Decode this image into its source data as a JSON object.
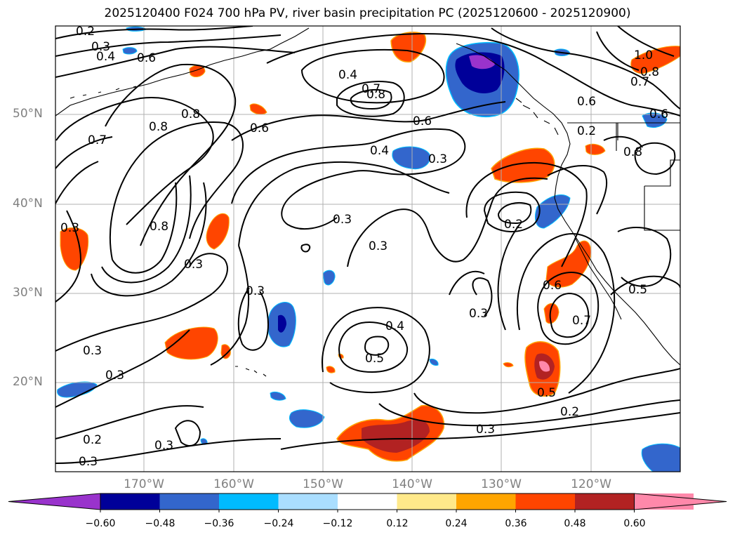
{
  "title": "2025120400 F024 700 hPa PV, river basin precipitation PC (2025120600 - 2025120900)",
  "lat_labels": [
    "50°N",
    "40°N",
    "30°N",
    "20°N"
  ],
  "lon_labels": [
    "170°W",
    "160°W",
    "150°W",
    "140°W",
    "130°W",
    "120°W"
  ],
  "colorbar": {
    "ticks": [
      "−0.60",
      "−0.48",
      "−0.36",
      "−0.24",
      "−0.12",
      "0.12",
      "0.24",
      "0.36",
      "0.48",
      "0.60"
    ],
    "colors": [
      "#9933cc",
      "#000099",
      "#3366cc",
      "#00bbff",
      "#aadeff",
      "#ffffff",
      "#ffe98a",
      "#ffa500",
      "#ff4500",
      "#b22222",
      "#ff88aa",
      "#ff88aa"
    ]
  },
  "contour_labels": [
    "0.2",
    "0.3",
    "0.4",
    "0.6",
    "0.8",
    "0.8",
    "0.7",
    "0.6",
    "0.4",
    "0.7",
    "0.8",
    "0.6",
    "0.4",
    "0.3",
    "0.6",
    "1.0",
    "0.8",
    "0.7",
    "0.6",
    "0.8",
    "0.2",
    "0.3",
    "0.3",
    "0.8",
    "0.3",
    "0.3",
    "0.2",
    "0.6",
    "0.7",
    "0.3",
    "0.4",
    "0.5",
    "0.3",
    "0.3",
    "0.3",
    "0.2",
    "0.3",
    "0.5",
    "0.5",
    "0.2",
    "0.3",
    "0.3"
  ],
  "colors": {
    "grid": "#b0b0b0",
    "contour": "#000000",
    "coast": "#000000"
  }
}
